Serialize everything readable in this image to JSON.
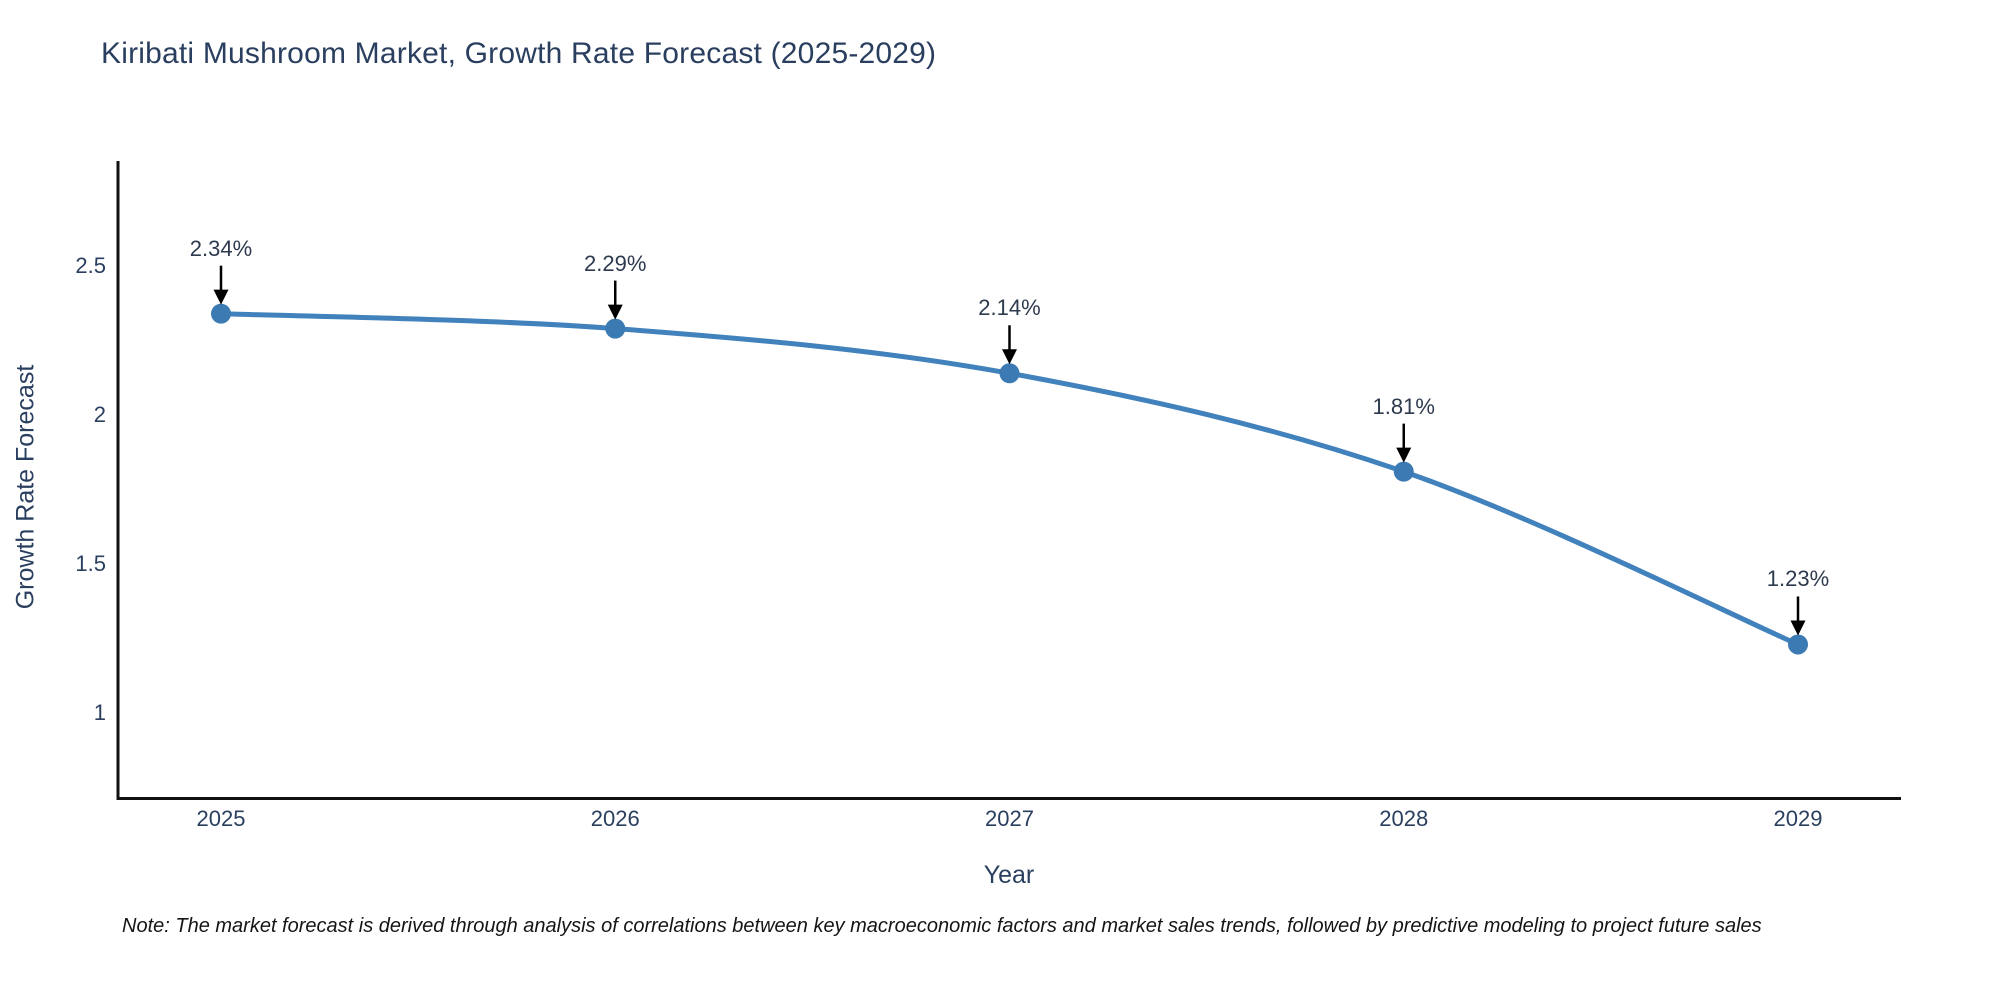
{
  "chart_data": {
    "type": "line",
    "title": "Kiribati Mushroom Market, Growth Rate Forecast (2025-2029)",
    "x": [
      "2025",
      "2026",
      "2027",
      "2028",
      "2029"
    ],
    "values": [
      2.34,
      2.29,
      2.14,
      1.81,
      1.23
    ],
    "point_labels": [
      "2.34%",
      "2.29%",
      "2.14%",
      "1.81%",
      "1.23%"
    ],
    "xlabel": "Year",
    "ylabel": "Growth Rate Forecast",
    "y_tick_labels": [
      "2.5",
      "2",
      "1.5",
      "1"
    ],
    "ylim": [
      0.7,
      2.85
    ],
    "grid": false,
    "legend": false,
    "line_shape": "spline",
    "markers": true,
    "line_color": "#4181bc",
    "marker_color": "#3c7ab3",
    "axis_color": "#111111",
    "text_color": "#2a3f5f",
    "annotation_color": "#2e3a4e",
    "arrow_color": "#000000"
  },
  "note": "Note: The market forecast is derived through analysis of correlations between key macroeconomic factors and market sales trends, followed by predictive modeling to project future sales"
}
